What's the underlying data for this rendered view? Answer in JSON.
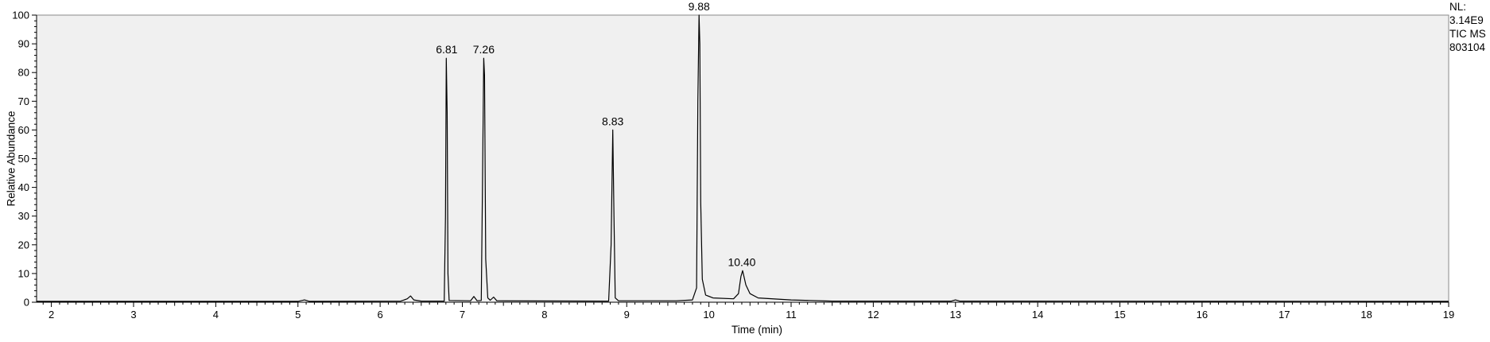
{
  "chart_data": {
    "type": "line",
    "title": "",
    "xlabel": "Time (min)",
    "ylabel": "Relative Abundance",
    "xlim": [
      1.82,
      19.0
    ],
    "ylim": [
      0,
      100
    ],
    "x_ticks": [
      2,
      3,
      4,
      5,
      6,
      7,
      8,
      9,
      10,
      11,
      12,
      13,
      14,
      15,
      16,
      17,
      18,
      19
    ],
    "y_ticks": [
      0,
      10,
      20,
      30,
      40,
      50,
      60,
      70,
      80,
      90,
      100
    ],
    "grid": false,
    "background": "#f0f0f0",
    "line_color": "#000000",
    "annotation": {
      "lines": [
        "NL:",
        "3.14E9",
        "TIC  MS",
        "803104"
      ]
    },
    "peaks": [
      {
        "label": "6.81",
        "x": 6.81,
        "y": 85
      },
      {
        "label": "7.26",
        "x": 7.26,
        "y": 85
      },
      {
        "label": "8.83",
        "x": 8.83,
        "y": 60
      },
      {
        "label": "9.88",
        "x": 9.88,
        "y": 100
      },
      {
        "label": "10.40",
        "x": 10.4,
        "y": 11
      }
    ],
    "series": [
      {
        "values": [
          [
            1.82,
            0.3
          ],
          [
            5.0,
            0.3
          ],
          [
            5.08,
            0.8
          ],
          [
            5.14,
            0.3
          ],
          [
            6.25,
            0.4
          ],
          [
            6.33,
            1.2
          ],
          [
            6.37,
            2.2
          ],
          [
            6.41,
            0.8
          ],
          [
            6.5,
            0.4
          ],
          [
            6.78,
            0.4
          ],
          [
            6.795,
            30
          ],
          [
            6.805,
            85
          ],
          [
            6.815,
            66
          ],
          [
            6.825,
            10
          ],
          [
            6.84,
            0.6
          ],
          [
            7.1,
            0.5
          ],
          [
            7.14,
            2.0
          ],
          [
            7.18,
            0.5
          ],
          [
            7.23,
            0.6
          ],
          [
            7.245,
            40
          ],
          [
            7.26,
            85
          ],
          [
            7.27,
            79
          ],
          [
            7.285,
            15
          ],
          [
            7.31,
            1.5
          ],
          [
            7.34,
            0.7
          ],
          [
            7.38,
            1.8
          ],
          [
            7.42,
            0.5
          ],
          [
            8.78,
            0.4
          ],
          [
            8.81,
            20
          ],
          [
            8.83,
            60
          ],
          [
            8.845,
            30
          ],
          [
            8.86,
            1.5
          ],
          [
            8.9,
            0.5
          ],
          [
            9.6,
            0.5
          ],
          [
            9.8,
            0.8
          ],
          [
            9.85,
            5
          ],
          [
            9.865,
            70
          ],
          [
            9.88,
            100
          ],
          [
            9.89,
            90
          ],
          [
            9.9,
            35
          ],
          [
            9.92,
            8
          ],
          [
            9.96,
            2.5
          ],
          [
            10.05,
            1.5
          ],
          [
            10.3,
            1.2
          ],
          [
            10.36,
            3
          ],
          [
            10.39,
            9
          ],
          [
            10.41,
            11
          ],
          [
            10.45,
            6
          ],
          [
            10.5,
            3
          ],
          [
            10.6,
            1.5
          ],
          [
            11.0,
            0.8
          ],
          [
            11.5,
            0.4
          ],
          [
            12.95,
            0.4
          ],
          [
            13.0,
            0.8
          ],
          [
            13.05,
            0.4
          ],
          [
            19.0,
            0.3
          ]
        ]
      }
    ]
  }
}
